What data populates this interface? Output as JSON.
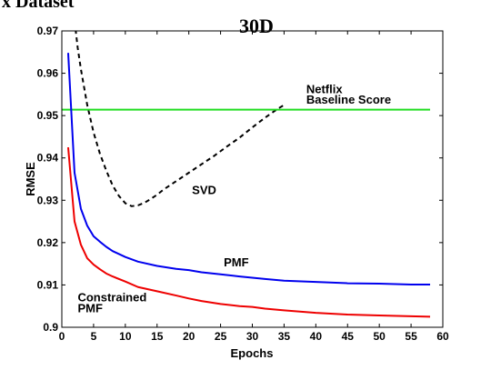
{
  "chart_data": {
    "type": "line",
    "title": "30D",
    "clipped_heading": "x Dataset",
    "xlabel": "Epochs",
    "ylabel": "RMSE",
    "xlim": [
      0,
      60
    ],
    "ylim": [
      0.9,
      0.97
    ],
    "xticks": [
      0,
      5,
      10,
      15,
      20,
      25,
      30,
      35,
      40,
      45,
      50,
      55,
      60
    ],
    "yticks": [
      0.9,
      0.91,
      0.92,
      0.93,
      0.94,
      0.95,
      0.96,
      0.97
    ],
    "ytick_labels": [
      "0.9",
      "0.91",
      "0.92",
      "0.93",
      "0.94",
      "0.95",
      "0.96",
      "0.97"
    ],
    "grid": false,
    "series": [
      {
        "name": "SVD",
        "color": "#000000",
        "style": "dashed",
        "x": [
          1.5,
          2,
          2.5,
          3,
          4,
          5,
          6,
          7,
          8,
          9,
          10,
          11,
          12,
          13,
          14,
          15,
          16,
          18,
          20,
          22,
          24,
          26,
          28,
          30,
          32,
          34,
          35
        ],
        "y": [
          0.98,
          0.9725,
          0.966,
          0.961,
          0.9525,
          0.946,
          0.941,
          0.937,
          0.9335,
          0.931,
          0.9293,
          0.9286,
          0.9288,
          0.9294,
          0.9303,
          0.9313,
          0.9325,
          0.9345,
          0.9365,
          0.9385,
          0.9405,
          0.9427,
          0.9448,
          0.9472,
          0.9495,
          0.9516,
          0.9525
        ]
      },
      {
        "name": "Netflix Baseline Score",
        "color": "#22dd22",
        "style": "solid",
        "x": [
          0,
          58
        ],
        "y": [
          0.9514,
          0.9514
        ]
      },
      {
        "name": "PMF",
        "color": "#0000ee",
        "style": "solid",
        "x": [
          1,
          2,
          3,
          4,
          5,
          6,
          7,
          8,
          10,
          12,
          15,
          18,
          20,
          22,
          25,
          28,
          30,
          32,
          35,
          40,
          45,
          50,
          55,
          58
        ],
        "y": [
          0.9648,
          0.9365,
          0.928,
          0.924,
          0.9215,
          0.9202,
          0.919,
          0.918,
          0.9166,
          0.9155,
          0.9145,
          0.9138,
          0.9135,
          0.913,
          0.9125,
          0.912,
          0.9117,
          0.9114,
          0.911,
          0.9107,
          0.9104,
          0.9103,
          0.9101,
          0.9101
        ]
      },
      {
        "name": "Constrained PMF",
        "color": "#ee0000",
        "style": "solid",
        "x": [
          1,
          2,
          3,
          4,
          5,
          6,
          7,
          8,
          10,
          12,
          15,
          18,
          20,
          22,
          25,
          28,
          30,
          32,
          35,
          40,
          45,
          50,
          55,
          58
        ],
        "y": [
          0.9425,
          0.925,
          0.9195,
          0.9163,
          0.9148,
          0.9137,
          0.9127,
          0.912,
          0.9108,
          0.9095,
          0.9085,
          0.9075,
          0.9068,
          0.9062,
          0.9055,
          0.905,
          0.9048,
          0.9044,
          0.904,
          0.9034,
          0.903,
          0.9028,
          0.9026,
          0.9025
        ]
      }
    ],
    "annotations": [
      {
        "text": "SVD",
        "x": 20.5,
        "y": 0.9315
      },
      {
        "text": "Netflix",
        "x": 38.5,
        "y": 0.9553
      },
      {
        "text": "Baseline Score",
        "x": 38.5,
        "y": 0.9528
      },
      {
        "text": "PMF",
        "x": 25.5,
        "y": 0.9144
      },
      {
        "text": "Constrained",
        "x": 2.5,
        "y": 0.9061
      },
      {
        "text": "PMF",
        "x": 2.5,
        "y": 0.9035
      }
    ]
  }
}
